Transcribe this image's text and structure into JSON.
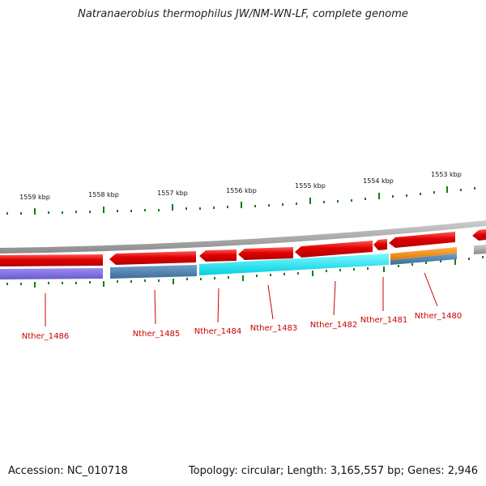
{
  "title": "Natranaerobius thermophilus JW/NM-WN-LF, complete genome",
  "accession": "Accession: NC_010718",
  "stats": "Topology: circular; Length: 3,165,557 bp; Genes: 2,946",
  "axis_labels": [
    "1559 kbp",
    "1558 kbp",
    "1557 kbp",
    "1556 kbp",
    "1555 kbp",
    "1554 kbp",
    "1553 kbp"
  ],
  "gene_labels": [
    "Nther_1486",
    "Nther_1485",
    "Nther_1484",
    "Nther_1483",
    "Nther_1482",
    "Nther_1481",
    "Nther_1480"
  ],
  "colors": {
    "cds": "#e00000",
    "cds_gap": "#a8a8a8",
    "backbone": "#888888",
    "tick": "#1a7a1a",
    "label": "#cc0000",
    "cog_purple": "#7766dd",
    "cog_steel": "#4c7fae",
    "cog_cyan": "#00e6f0",
    "cog_orange": "#f08c00",
    "cog_blue": "#4c7fae"
  }
}
